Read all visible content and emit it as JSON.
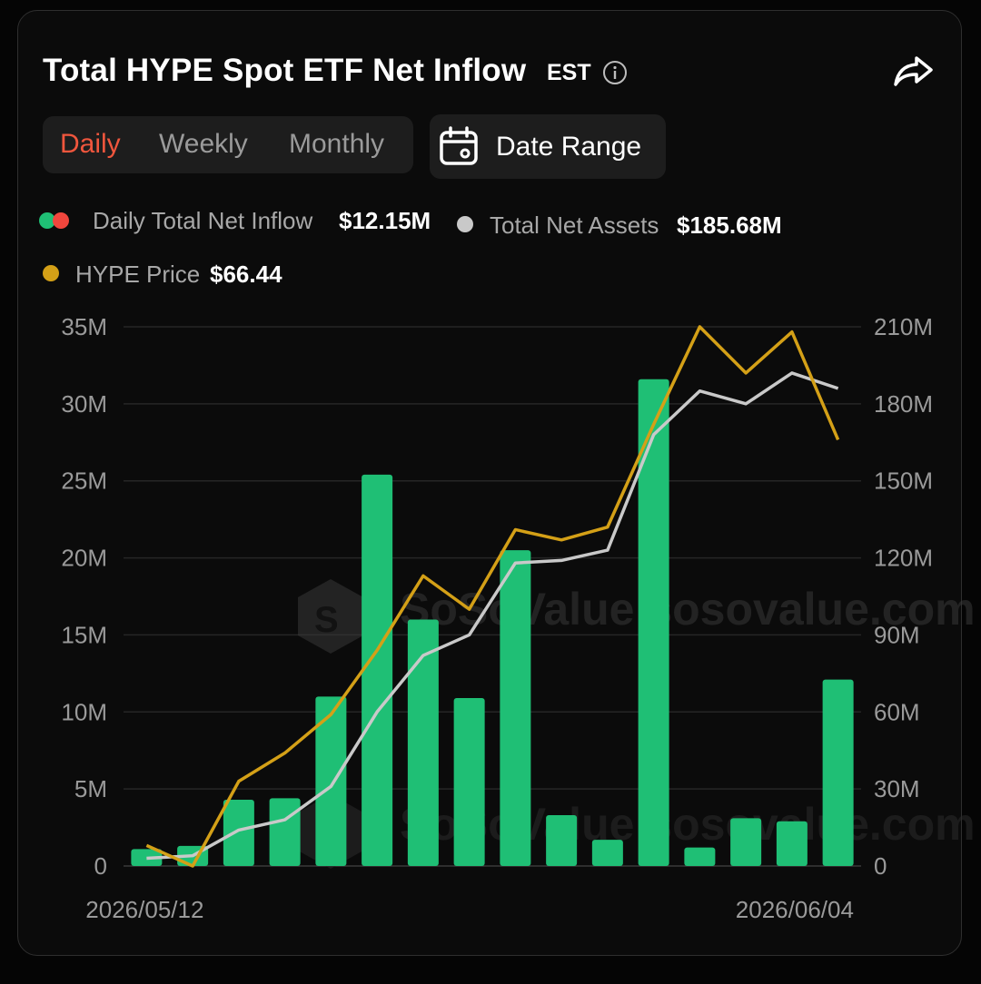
{
  "header": {
    "title": "Total HYPE Spot ETF Net Inflow",
    "timezone": "EST",
    "info_icon": "info-circle-icon",
    "share_icon": "share-arrow-icon"
  },
  "tabs": [
    {
      "label": "Daily",
      "active": true
    },
    {
      "label": "Weekly",
      "active": false
    },
    {
      "label": "Monthly",
      "active": false
    }
  ],
  "date_range": {
    "label": "Date Range",
    "icon": "calendar-icon"
  },
  "legend": [
    {
      "label": "Daily Total Net Inflow",
      "value": "$12.15M",
      "colors": [
        "#1fbf75",
        "#f0463d"
      ]
    },
    {
      "label": "Total Net Assets",
      "value": "$185.68M",
      "color": "#c9c9c9"
    },
    {
      "label": "HYPE Price",
      "value": "$66.44",
      "color": "#d4a017"
    }
  ],
  "watermark": "SoSoValue sosovalue.com",
  "chart_data": {
    "type": "bar",
    "x_labels_shown": [
      "2026/05/12",
      "2026/06/04"
    ],
    "left_axis": {
      "ticks": [
        "0",
        "5M",
        "10M",
        "15M",
        "20M",
        "25M",
        "30M",
        "35M"
      ],
      "ylim": [
        0,
        35
      ]
    },
    "right_axis": {
      "ticks": [
        "0",
        "30M",
        "60M",
        "90M",
        "120M",
        "150M",
        "180M",
        "210M"
      ],
      "ylim": [
        0,
        210
      ]
    },
    "grid": true,
    "series": [
      {
        "name": "Daily Total Net Inflow",
        "type": "bar",
        "color": "#1fbf75",
        "unit": "M",
        "values": [
          1.1,
          1.3,
          4.3,
          4.4,
          11.0,
          25.4,
          16.0,
          10.9,
          20.5,
          3.3,
          1.7,
          31.6,
          1.2,
          3.1,
          2.9,
          12.1
        ]
      },
      {
        "name": "Total Net Assets",
        "type": "line",
        "axis": "right",
        "color": "#c9c9c9",
        "unit": "M",
        "values": [
          3,
          4,
          14,
          18,
          31,
          60,
          82,
          90,
          118,
          119,
          123,
          168,
          185,
          180,
          192,
          186
        ]
      },
      {
        "name": "HYPE Price",
        "type": "line",
        "axis": "right",
        "color": "#d4a017",
        "values": [
          8,
          0,
          33,
          44,
          59,
          84,
          113,
          100,
          131,
          127,
          132,
          172,
          210,
          192,
          208,
          166
        ]
      }
    ]
  }
}
